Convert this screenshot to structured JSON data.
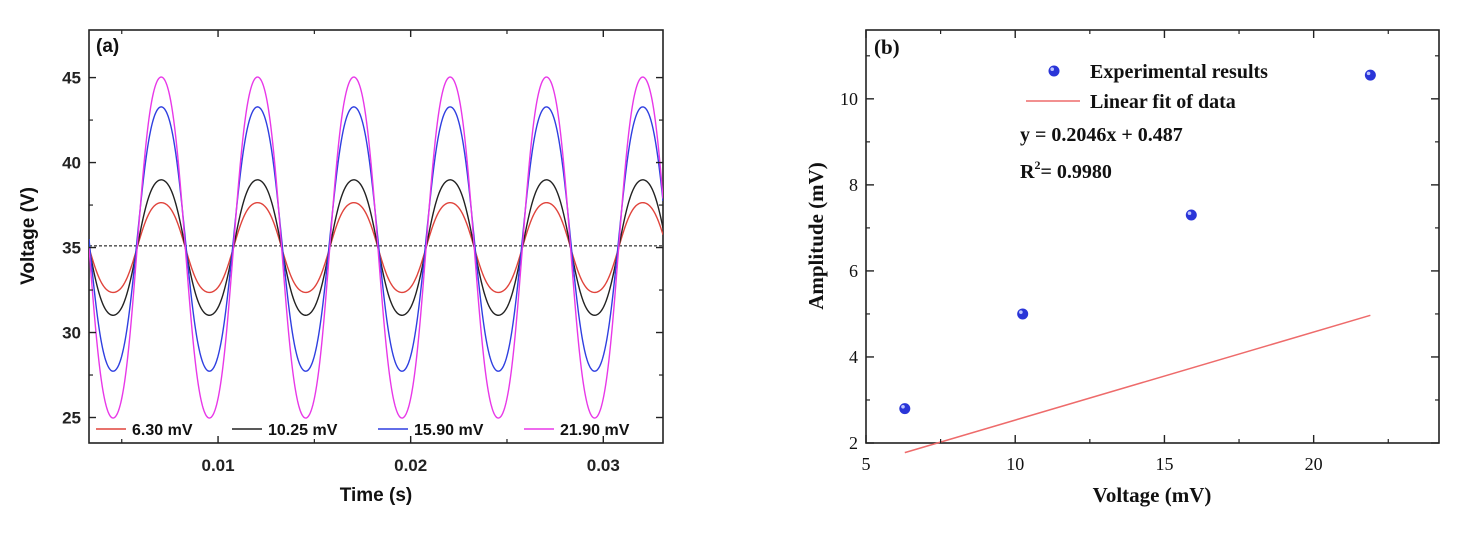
{
  "chart_data": [
    {
      "panel_label": "(a)",
      "type": "line",
      "xlabel": "Time (s)",
      "ylabel": "Voltage (V)",
      "xlim": [
        0.0033,
        0.0331
      ],
      "ylim": [
        23.5,
        47.8
      ],
      "x_ticks": [
        {
          "value": 0.01,
          "label": "0.01"
        },
        {
          "value": 0.02,
          "label": "0.02"
        },
        {
          "value": 0.03,
          "label": "0.03"
        }
      ],
      "y_ticks": [
        {
          "value": 25,
          "label": "25"
        },
        {
          "value": 30,
          "label": "30"
        },
        {
          "value": 35,
          "label": "35"
        },
        {
          "value": 40,
          "label": "40"
        },
        {
          "value": 45,
          "label": "45"
        }
      ],
      "reference_line": {
        "y": 35.1,
        "style": "dashed",
        "color": "#000000"
      },
      "waveform": {
        "frequency_hz": 200,
        "phase_zero_crossing_s": 0.0058
      },
      "legend": {
        "position": "bottom",
        "entries": [
          "6.30 mV",
          "10.25 mV",
          "15.90 mV",
          "21.90 mV"
        ]
      },
      "series": [
        {
          "name": "6.30 mV",
          "color": "#e0443c",
          "center": 35.0,
          "amplitude": 2.75
        },
        {
          "name": "10.25 mV",
          "color": "#222222",
          "center": 35.0,
          "amplitude": 4.15
        },
        {
          "name": "15.90 mV",
          "color": "#2f3fe0",
          "center": 35.5,
          "amplitude": 8.1
        },
        {
          "name": "21.90 mV",
          "color": "#e838e8",
          "center": 35.0,
          "amplitude": 10.45
        }
      ]
    },
    {
      "panel_label": "(b)",
      "type": "scatter",
      "xlabel": "Voltage (mV)",
      "ylabel": "Amplitude (mV)",
      "xlim": [
        5,
        24.2
      ],
      "ylim": [
        2,
        11.6
      ],
      "x_ticks": [
        {
          "value": 5,
          "label": "5"
        },
        {
          "value": 10,
          "label": "10"
        },
        {
          "value": 15,
          "label": "15"
        },
        {
          "value": 20,
          "label": "20"
        }
      ],
      "y_ticks": [
        {
          "value": 2,
          "label": "2"
        },
        {
          "value": 4,
          "label": "4"
        },
        {
          "value": 6,
          "label": "6"
        },
        {
          "value": 8,
          "label": "8"
        },
        {
          "value": 10,
          "label": "10"
        }
      ],
      "legend": {
        "position": "top",
        "entries": [
          "Experimental results",
          "Linear fit of data"
        ]
      },
      "series": [
        {
          "name": "Experimental results",
          "color": "#2a35d8",
          "x": [
            6.3,
            10.25,
            15.9,
            21.9
          ],
          "y": [
            2.8,
            5.0,
            7.3,
            10.55
          ]
        }
      ],
      "fit": {
        "name": "Linear fit of data",
        "color": "#ee6b6b",
        "slope": 0.2046,
        "intercept": 0.487,
        "x_range": [
          6.3,
          21.9
        ]
      },
      "annotations": {
        "equation": "y = 0.2046x + 0.487",
        "r2_prefix": "R",
        "r2_sup": "2",
        "r2_value": "= 0.9980"
      }
    }
  ]
}
